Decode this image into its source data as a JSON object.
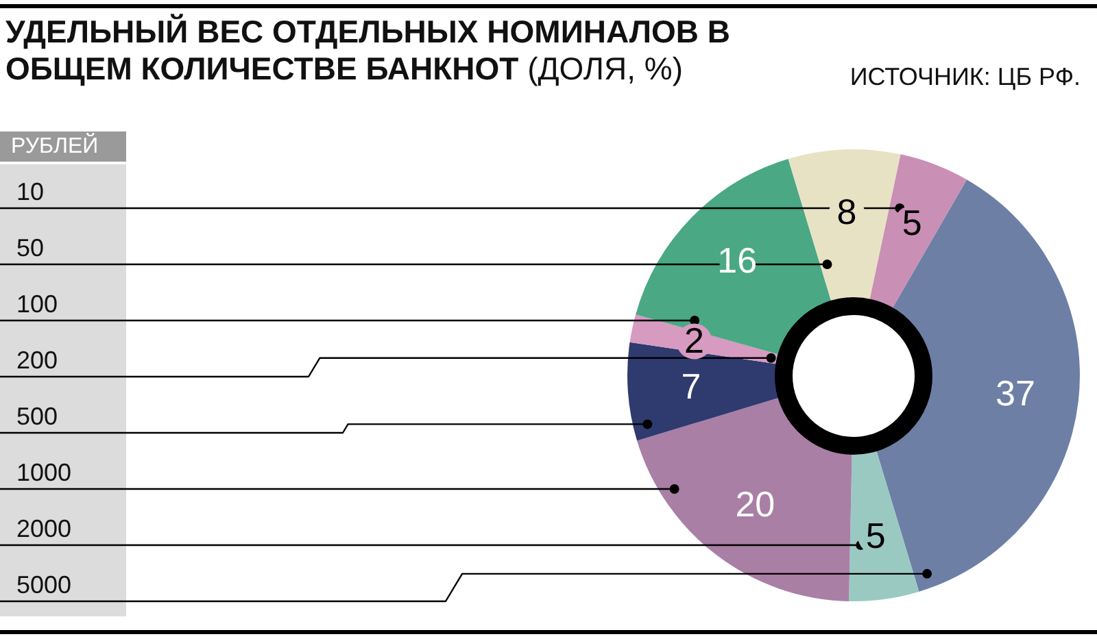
{
  "chart_data": {
    "type": "donut",
    "title": "УДЕЛЬНЫЙ ВЕС ОТДЕЛЬНЫХ НОМИНАЛОВ В ОБЩЕМ КОЛИЧЕСТВЕ БАНКНОТ",
    "subtitle": "(ДОЛЯ, %)",
    "legend_title": "РУБЛЕЙ",
    "annotations": [
      "ИСТОЧНИК: ЦБ РФ."
    ],
    "categories": [
      "10",
      "50",
      "100",
      "200",
      "500",
      "1000",
      "2000",
      "5000"
    ],
    "values": [
      5,
      8,
      16,
      2,
      7,
      20,
      5,
      37
    ],
    "colors": [
      "#c98fb4",
      "#e8e2c5",
      "#4aa885",
      "#d79ac0",
      "#2f3a6e",
      "#a97fa5",
      "#9ac9c2",
      "#6e7fa6"
    ],
    "data_labels": true
  }
}
